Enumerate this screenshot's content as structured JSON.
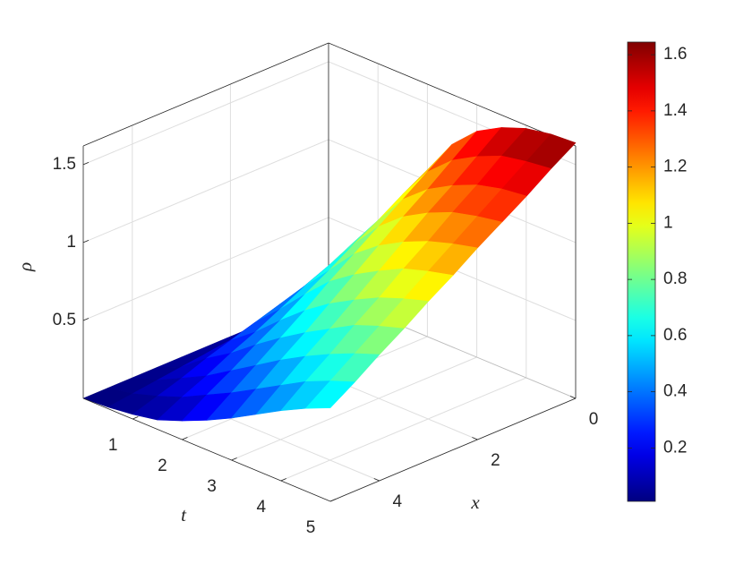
{
  "chart_data": {
    "type": "surface",
    "xlabel": "x",
    "ylabel": "t",
    "zlabel": "ρ",
    "t": [
      0,
      0.5,
      1,
      1.5,
      2,
      2.5,
      3,
      3.5,
      4,
      4.5,
      5
    ],
    "x": [
      0,
      0.5,
      1,
      1.5,
      2,
      2.5,
      3,
      3.5,
      4,
      4.5,
      5
    ],
    "z": [
      [
        0,
        0,
        0,
        0,
        0,
        0,
        0,
        0,
        0,
        0,
        0
      ],
      [
        0.2,
        0.18,
        0.16,
        0.14,
        0.12,
        0.11,
        0.09,
        0.07,
        0.05,
        0.03,
        0.01
      ],
      [
        0.55,
        0.5,
        0.45,
        0.39,
        0.34,
        0.29,
        0.24,
        0.19,
        0.13,
        0.08,
        0.03
      ],
      [
        0.82,
        0.74,
        0.67,
        0.59,
        0.52,
        0.44,
        0.36,
        0.29,
        0.21,
        0.14,
        0.06
      ],
      [
        1.07,
        0.98,
        0.88,
        0.79,
        0.69,
        0.6,
        0.5,
        0.41,
        0.31,
        0.22,
        0.12
      ],
      [
        1.3,
        1.19,
        1.08,
        0.97,
        0.86,
        0.75,
        0.63,
        0.52,
        0.41,
        0.3,
        0.19
      ],
      [
        1.45,
        1.33,
        1.21,
        1.1,
        0.98,
        0.86,
        0.74,
        0.62,
        0.51,
        0.39,
        0.27
      ],
      [
        1.54,
        1.42,
        1.3,
        1.19,
        1.07,
        0.95,
        0.83,
        0.71,
        0.6,
        0.48,
        0.36
      ],
      [
        1.6,
        1.49,
        1.37,
        1.26,
        1.14,
        1.03,
        0.91,
        0.8,
        0.68,
        0.57,
        0.45
      ],
      [
        1.63,
        1.52,
        1.41,
        1.3,
        1.19,
        1.08,
        0.97,
        0.86,
        0.75,
        0.64,
        0.53
      ],
      [
        1.64,
        1.54,
        1.43,
        1.33,
        1.23,
        1.12,
        1.02,
        0.91,
        0.81,
        0.7,
        0.6
      ]
    ],
    "tlim": [
      0,
      5
    ],
    "xlim": [
      0,
      5
    ],
    "zlim": [
      0,
      1.62
    ],
    "tticks": [
      1,
      2,
      3,
      4,
      5
    ],
    "xticks": [
      0,
      2,
      4
    ],
    "zticks": [
      0.5,
      1,
      1.5
    ],
    "grid": true,
    "colorbar": {
      "colormap": "jet",
      "clim": [
        0.01,
        1.645
      ],
      "ticks": [
        0.2,
        0.4,
        0.6,
        0.8,
        1,
        1.2,
        1.4,
        1.6
      ]
    }
  }
}
